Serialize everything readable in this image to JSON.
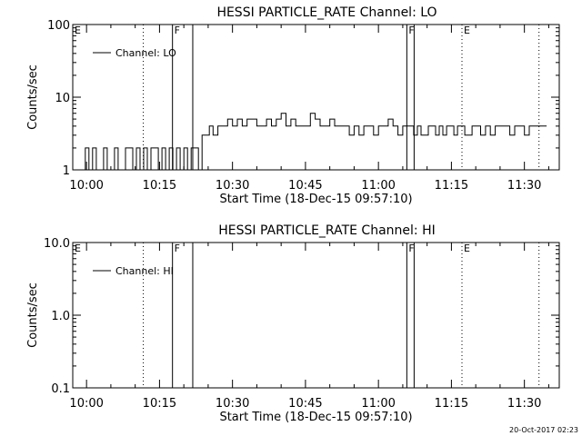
{
  "chart_data": [
    {
      "type": "line",
      "title": "HESSI PARTICLE_RATE Channel: LO",
      "xlabel": "Start Time (18-Dec-15 09:57:10)",
      "ylabel": "Counts/sec",
      "yscale": "log",
      "ylim": [
        1,
        100
      ],
      "yticks": [
        1,
        10,
        100
      ],
      "ytick_labels": [
        "1",
        "10",
        "100"
      ],
      "xlim": [
        "09:57:10",
        "11:37:10"
      ],
      "xticks": [
        "10:00",
        "10:15",
        "10:30",
        "10:45",
        "11:00",
        "11:15",
        "11:30"
      ],
      "legend": "top-left",
      "series": [
        {
          "name": "Channel: LO",
          "color": "#000000",
          "times": [
            "09:59:00",
            "09:59:45",
            "10:00:30",
            "10:01:15",
            "10:02:00",
            "10:02:45",
            "10:03:30",
            "10:04:15",
            "10:05:00",
            "10:05:45",
            "10:06:30",
            "10:07:15",
            "10:08:00",
            "10:08:45",
            "10:09:30",
            "10:10:15",
            "10:11:00",
            "10:11:45",
            "10:12:30",
            "10:13:15",
            "10:14:00",
            "10:14:45",
            "10:15:30",
            "10:16:15",
            "10:17:00",
            "10:17:45",
            "10:18:30",
            "10:19:15",
            "10:20:00",
            "10:20:45",
            "10:21:30",
            "10:22:15",
            "10:23:00",
            "10:23:45",
            "10:24:30",
            "10:25:15",
            "10:26:00",
            "10:27:00",
            "10:28:00",
            "10:29:00",
            "10:30:00",
            "10:31:00",
            "10:32:00",
            "10:33:00",
            "10:34:00",
            "10:35:00",
            "10:36:00",
            "10:37:00",
            "10:38:00",
            "10:39:00",
            "10:40:00",
            "10:41:00",
            "10:42:00",
            "10:43:00",
            "10:44:00",
            "10:45:00",
            "10:46:00",
            "10:47:00",
            "10:48:00",
            "10:49:00",
            "10:50:00",
            "10:51:00",
            "10:52:00",
            "10:53:00",
            "10:54:00",
            "10:55:00",
            "10:56:00",
            "10:57:00",
            "10:58:00",
            "10:59:00",
            "11:00:00",
            "11:01:00",
            "11:02:00",
            "11:03:00",
            "11:04:00",
            "11:05:00",
            "11:05:45",
            "11:06:30",
            "11:07:15",
            "11:08:00",
            "11:08:45",
            "11:09:30",
            "11:10:15",
            "11:11:00",
            "11:11:45",
            "11:12:30",
            "11:13:15",
            "11:14:00",
            "11:14:45",
            "11:15:30",
            "11:16:15",
            "11:17:00",
            "11:17:45",
            "11:18:30",
            "11:19:15",
            "11:20:00",
            "11:21:00",
            "11:22:00",
            "11:23:00",
            "11:24:00",
            "11:25:00",
            "11:26:00",
            "11:27:00",
            "11:28:00",
            "11:29:00",
            "11:30:00",
            "11:31:00",
            "11:32:00",
            "11:33:00",
            "11:34:00"
          ],
          "values": [
            1,
            2,
            1,
            2,
            1,
            1,
            2,
            1,
            1,
            2,
            1,
            1,
            2,
            2,
            1,
            2,
            1,
            2,
            1,
            2,
            2,
            1,
            2,
            1,
            2,
            1,
            2,
            1,
            2,
            1,
            2,
            2,
            1,
            3,
            3,
            4,
            3,
            4,
            4,
            5,
            4,
            5,
            4,
            5,
            5,
            4,
            4,
            5,
            4,
            5,
            6,
            4,
            5,
            4,
            4,
            4,
            6,
            5,
            4,
            4,
            5,
            4,
            4,
            4,
            3,
            4,
            3,
            4,
            4,
            3,
            4,
            4,
            5,
            4,
            3,
            4,
            4,
            4,
            3,
            4,
            3,
            3,
            4,
            4,
            3,
            4,
            3,
            4,
            4,
            3,
            4,
            4,
            3,
            3,
            4,
            4,
            3,
            4,
            3,
            4,
            4,
            4,
            3,
            4,
            4,
            3,
            4,
            4,
            4,
            4
          ]
        }
      ],
      "markers": [
        {
          "time": "10:11:40",
          "style": "dotted",
          "label": ""
        },
        {
          "time": "10:17:40",
          "style": "solid",
          "label": "F"
        },
        {
          "time": "10:21:50",
          "style": "solid",
          "label": ""
        },
        {
          "time": "11:05:50",
          "style": "solid",
          "label": "F"
        },
        {
          "time": "11:07:20",
          "style": "solid",
          "label": ""
        },
        {
          "time": "11:17:10",
          "style": "dotted",
          "label": "E"
        },
        {
          "time": "11:33:00",
          "style": "dotted",
          "label": ""
        }
      ],
      "corner_label": "E"
    },
    {
      "type": "line",
      "title": "HESSI PARTICLE_RATE Channel: HI",
      "xlabel": "Start Time (18-Dec-15 09:57:10)",
      "ylabel": "Counts/sec",
      "yscale": "log",
      "ylim": [
        0.1,
        10
      ],
      "yticks": [
        0.1,
        1,
        10
      ],
      "ytick_labels": [
        "0.1",
        "1.0",
        "10.0"
      ],
      "xlim": [
        "09:57:10",
        "11:37:10"
      ],
      "xticks": [
        "10:00",
        "10:15",
        "10:30",
        "10:45",
        "11:00",
        "11:15",
        "11:30"
      ],
      "legend": "top-left",
      "series": [
        {
          "name": "Channel: HI",
          "color": "#000000",
          "times": [],
          "values": []
        }
      ],
      "markers": [
        {
          "time": "10:11:40",
          "style": "dotted",
          "label": ""
        },
        {
          "time": "10:17:40",
          "style": "solid",
          "label": "F"
        },
        {
          "time": "10:21:50",
          "style": "solid",
          "label": ""
        },
        {
          "time": "11:05:50",
          "style": "solid",
          "label": "F"
        },
        {
          "time": "11:07:20",
          "style": "solid",
          "label": ""
        },
        {
          "time": "11:17:10",
          "style": "dotted",
          "label": "E"
        },
        {
          "time": "11:33:00",
          "style": "dotted",
          "label": ""
        }
      ],
      "corner_label": "E"
    }
  ],
  "footer": {
    "stamp": "20-Oct-2017 02:23"
  }
}
